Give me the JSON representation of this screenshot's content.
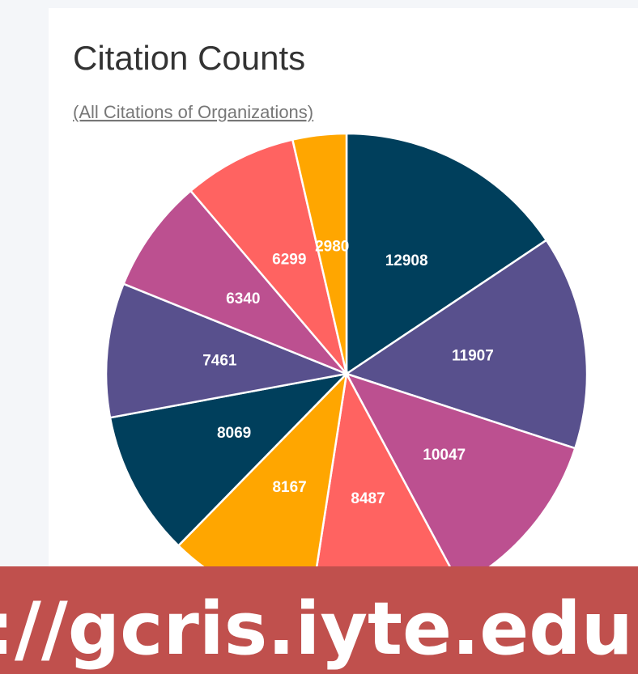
{
  "title": "Citation Counts",
  "subtitle": "(All Citations of Organizations)",
  "chart_data": {
    "type": "pie",
    "values": [
      12908,
      11907,
      10047,
      8487,
      8167,
      8069,
      7461,
      6340,
      6299,
      2980
    ],
    "colors": [
      "#003f5c",
      "#58508d",
      "#bc5090",
      "#ff6361",
      "#ffa600",
      "#003f5c",
      "#58508d",
      "#bc5090",
      "#ff6361",
      "#ffa600"
    ]
  },
  "banner": "://gcris.iyte.edu.tr"
}
